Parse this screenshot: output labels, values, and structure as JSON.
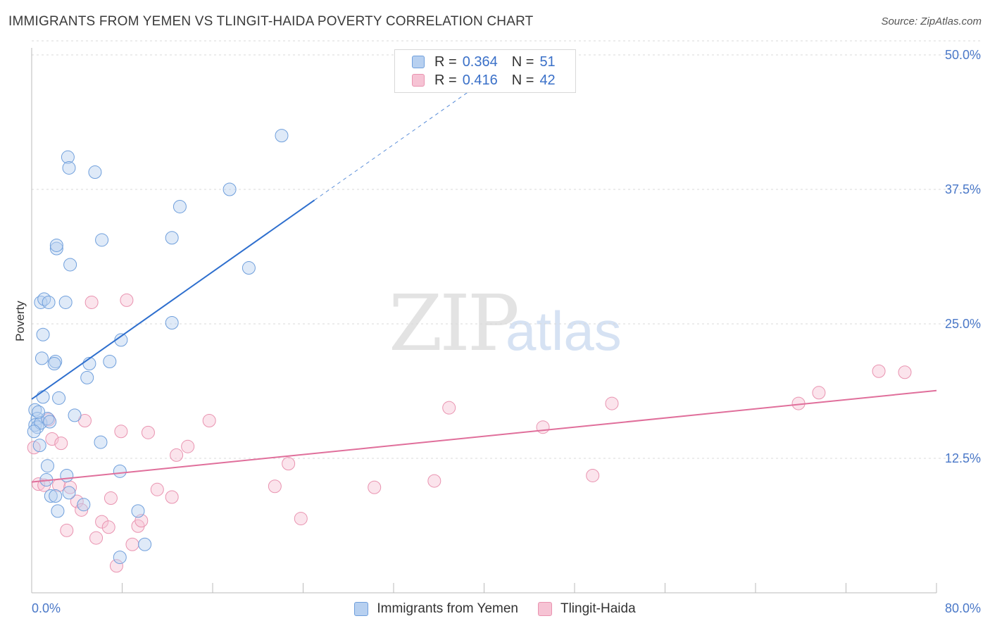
{
  "header": {
    "title": "IMMIGRANTS FROM YEMEN VS TLINGIT-HAIDA POVERTY CORRELATION CHART",
    "source": "Source: ZipAtlas.com"
  },
  "watermark": {
    "main": "ZIP",
    "sub": "atlas"
  },
  "legend": {
    "series": [
      {
        "r_label": "R =",
        "r_value": "0.364",
        "n_label": "N =",
        "n_value": "51"
      },
      {
        "r_label": "R =",
        "r_value": "0.416",
        "n_label": "N =",
        "n_value": "42"
      }
    ]
  },
  "bottom_legend": {
    "items": [
      "Immigrants from Yemen",
      "Tlingit-Haida"
    ]
  },
  "colors": {
    "blue_fill": "#b7d0f0",
    "blue_stroke": "#6f9fdc",
    "blue_line": "#2e6fce",
    "pink_fill": "#f6c3d4",
    "pink_stroke": "#e993b0",
    "pink_line": "#e06f9b",
    "grid": "#d8d8d8",
    "tick_text": "#4a78c8"
  },
  "chart_data": {
    "type": "scatter",
    "title": "IMMIGRANTS FROM YEMEN VS TLINGIT-HAIDA POVERTY CORRELATION CHART",
    "xlabel": "",
    "ylabel": "Poverty",
    "xlim": [
      0,
      80
    ],
    "ylim": [
      0,
      50
    ],
    "x_tick_labels": [
      "0.0%",
      "80.0%"
    ],
    "y_ticks": [
      12.5,
      25.0,
      37.5,
      50.0
    ],
    "y_tick_labels": [
      "12.5%",
      "25.0%",
      "37.5%",
      "50.0%"
    ],
    "grid": true,
    "series": [
      {
        "name": "Immigrants from Yemen",
        "r": 0.364,
        "n": 51,
        "trend": {
          "x": [
            0,
            25
          ],
          "y": [
            18.0,
            36.5
          ],
          "dashed_to": [
            41.5,
            48.7
          ]
        },
        "points": [
          [
            0.3,
            17.0
          ],
          [
            0.5,
            16.2
          ],
          [
            0.3,
            15.6
          ],
          [
            0.5,
            15.4
          ],
          [
            0.8,
            15.8
          ],
          [
            0.7,
            13.7
          ],
          [
            1.0,
            18.2
          ],
          [
            0.9,
            21.8
          ],
          [
            1.0,
            24.0
          ],
          [
            0.8,
            27.0
          ],
          [
            1.1,
            27.3
          ],
          [
            1.5,
            27.0
          ],
          [
            1.4,
            16.2
          ],
          [
            1.4,
            11.8
          ],
          [
            1.3,
            10.5
          ],
          [
            1.7,
            9.0
          ],
          [
            2.1,
            9.0
          ],
          [
            2.3,
            7.6
          ],
          [
            2.1,
            21.5
          ],
          [
            2.0,
            21.3
          ],
          [
            2.2,
            32.0
          ],
          [
            2.2,
            32.3
          ],
          [
            2.4,
            18.1
          ],
          [
            3.0,
            27.0
          ],
          [
            3.1,
            10.9
          ],
          [
            3.3,
            9.3
          ],
          [
            3.2,
            40.5
          ],
          [
            3.3,
            39.5
          ],
          [
            3.4,
            30.5
          ],
          [
            3.8,
            16.5
          ],
          [
            4.6,
            8.2
          ],
          [
            4.9,
            20.0
          ],
          [
            5.1,
            21.3
          ],
          [
            5.6,
            39.1
          ],
          [
            6.1,
            14.0
          ],
          [
            6.2,
            32.8
          ],
          [
            6.9,
            21.5
          ],
          [
            7.8,
            11.3
          ],
          [
            7.9,
            23.5
          ],
          [
            7.8,
            3.3
          ],
          [
            9.4,
            7.6
          ],
          [
            10.0,
            4.5
          ],
          [
            12.4,
            33.0
          ],
          [
            12.4,
            25.1
          ],
          [
            13.1,
            35.9
          ],
          [
            17.5,
            37.5
          ],
          [
            19.2,
            30.2
          ],
          [
            22.1,
            42.5
          ],
          [
            0.2,
            15.0
          ],
          [
            0.6,
            16.8
          ],
          [
            1.6,
            15.9
          ]
        ]
      },
      {
        "name": "Tlingit-Haida",
        "r": 0.416,
        "n": 42,
        "trend": {
          "x": [
            0,
            80
          ],
          "y": [
            10.3,
            18.8
          ]
        },
        "points": [
          [
            0.2,
            13.5
          ],
          [
            0.6,
            10.1
          ],
          [
            1.1,
            10.0
          ],
          [
            1.5,
            16.1
          ],
          [
            1.8,
            14.3
          ],
          [
            2.4,
            10.0
          ],
          [
            2.6,
            13.9
          ],
          [
            3.1,
            5.8
          ],
          [
            3.4,
            9.8
          ],
          [
            4.0,
            8.5
          ],
          [
            4.4,
            7.7
          ],
          [
            4.7,
            16.0
          ],
          [
            5.3,
            27.0
          ],
          [
            5.7,
            5.1
          ],
          [
            6.2,
            6.6
          ],
          [
            6.8,
            6.1
          ],
          [
            7.0,
            8.8
          ],
          [
            7.5,
            2.5
          ],
          [
            7.9,
            15.0
          ],
          [
            8.4,
            27.2
          ],
          [
            8.9,
            4.5
          ],
          [
            9.4,
            6.2
          ],
          [
            9.7,
            6.7
          ],
          [
            10.3,
            14.9
          ],
          [
            11.1,
            9.6
          ],
          [
            12.4,
            8.9
          ],
          [
            12.8,
            12.8
          ],
          [
            13.8,
            13.6
          ],
          [
            15.7,
            16.0
          ],
          [
            21.5,
            9.9
          ],
          [
            22.7,
            12.0
          ],
          [
            23.8,
            6.9
          ],
          [
            30.3,
            9.8
          ],
          [
            35.6,
            10.4
          ],
          [
            36.9,
            17.2
          ],
          [
            45.2,
            15.4
          ],
          [
            49.6,
            10.9
          ],
          [
            51.3,
            17.6
          ],
          [
            67.8,
            17.6
          ],
          [
            69.6,
            18.6
          ],
          [
            74.9,
            20.6
          ],
          [
            77.2,
            20.5
          ]
        ]
      }
    ]
  }
}
